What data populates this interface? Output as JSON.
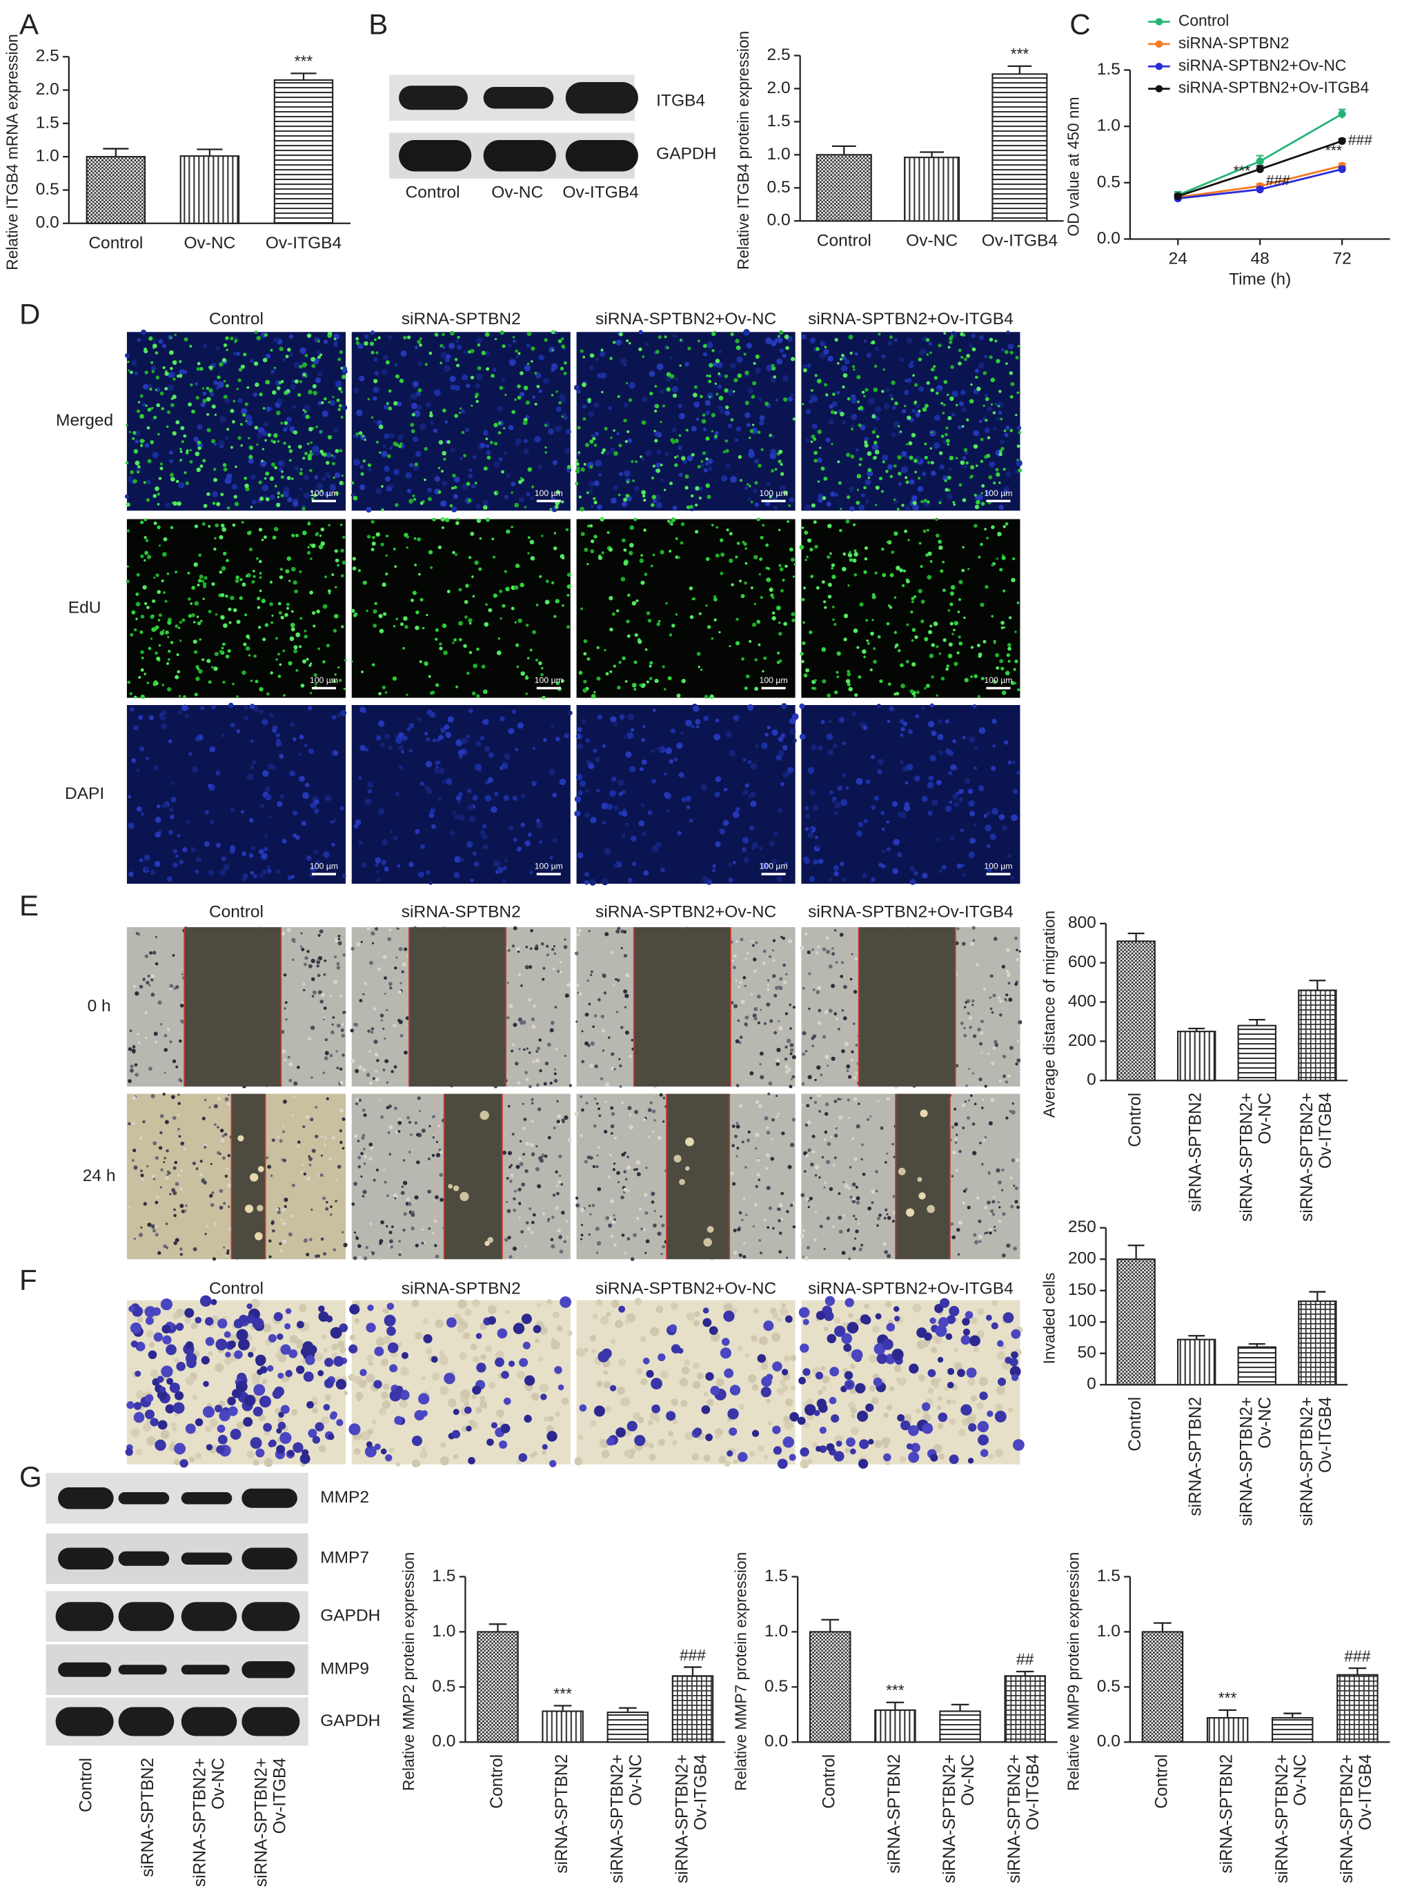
{
  "chart_data": [
    {
      "type": "bar",
      "ylabel": "Relative ITGB4 mRNA expression",
      "categories": [
        "Control",
        "Ov-NC",
        "Ov-ITGB4"
      ],
      "values": [
        1.0,
        1.01,
        2.15
      ],
      "errors": [
        0.12,
        0.1,
        0.1
      ],
      "annotations": [
        null,
        null,
        "***"
      ],
      "patterns": [
        "checker",
        "vertical",
        "horizontal"
      ],
      "ylim": [
        0,
        2.5
      ],
      "yticks": [
        {
          "value": 0,
          "label": "0.0"
        },
        {
          "value": 0.5,
          "label": "0.5"
        },
        {
          "value": 1,
          "label": "1.0"
        },
        {
          "value": 1.5,
          "label": "1.5"
        },
        {
          "value": 2,
          "label": "2.0"
        },
        {
          "value": 2.5,
          "label": "2.5"
        }
      ]
    },
    {
      "type": "bar",
      "ylabel": "Relative ITGB4 protein expression",
      "categories": [
        "Control",
        "Ov-NC",
        "Ov-ITGB4"
      ],
      "values": [
        1.0,
        0.96,
        2.22
      ],
      "errors": [
        0.13,
        0.08,
        0.12
      ],
      "annotations": [
        null,
        null,
        "***"
      ],
      "patterns": [
        "checker",
        "vertical",
        "horizontal"
      ],
      "ylim": [
        0,
        2.5
      ],
      "yticks": [
        {
          "value": 0,
          "label": "0.0"
        },
        {
          "value": 0.5,
          "label": "0.5"
        },
        {
          "value": 1,
          "label": "1.0"
        },
        {
          "value": 1.5,
          "label": "1.5"
        },
        {
          "value": 2,
          "label": "2.0"
        },
        {
          "value": 2.5,
          "label": "2.5"
        }
      ]
    },
    {
      "type": "line",
      "xlabel": "Time (h)",
      "ylabel": "OD value at 450 nm",
      "x": [
        24,
        48,
        72
      ],
      "xlim": [
        10,
        86
      ],
      "xticks": [
        24,
        48,
        72
      ],
      "ylim": [
        0,
        1.5
      ],
      "yticks": [
        {
          "value": 0,
          "label": "0.0"
        },
        {
          "value": 0.5,
          "label": "0.5"
        },
        {
          "value": 1,
          "label": "1.0"
        },
        {
          "value": 1.5,
          "label": "1.5"
        }
      ],
      "legend": "top",
      "series": [
        {
          "name": "Control",
          "color": "#22b573",
          "values": [
            0.39,
            0.69,
            1.11
          ],
          "errors": [
            0.03,
            0.05,
            0.04
          ]
        },
        {
          "name": "siRNA-SPTBN2",
          "color": "#f47a20",
          "values": [
            0.37,
            0.47,
            0.65
          ],
          "errors": [
            0.02,
            0.02,
            0.02
          ],
          "annotations": [
            null,
            "***",
            "***"
          ]
        },
        {
          "name": "siRNA-SPTBN2+Ov-NC",
          "color": "#2a2ad8",
          "values": [
            0.36,
            0.44,
            0.62
          ],
          "errors": [
            0.02,
            0.02,
            0.02
          ]
        },
        {
          "name": "siRNA-SPTBN2+Ov-ITGB4",
          "color": "#111111",
          "values": [
            0.38,
            0.62,
            0.87
          ],
          "errors": [
            0.02,
            0.03,
            0.02
          ],
          "annotations": [
            null,
            "###",
            "###"
          ]
        }
      ]
    },
    {
      "type": "bar",
      "ylabel": "Average distance of migration",
      "categories": [
        "Control",
        "siRNA-SPTBN2",
        "siRNA-SPTBN2+\nOv-NC",
        "siRNA-SPTBN2+\nOv-ITGB4"
      ],
      "values": [
        710,
        250,
        280,
        460
      ],
      "errors": [
        40,
        15,
        30,
        50
      ],
      "annotations": [
        null,
        null,
        null,
        null
      ],
      "patterns": [
        "checker",
        "vertical",
        "horizontal",
        "grid"
      ],
      "ylim": [
        0,
        800
      ],
      "yticks": [
        0,
        200,
        400,
        600,
        800
      ]
    },
    {
      "type": "bar",
      "ylabel": "Invaded cells",
      "categories": [
        "Control",
        "siRNA-SPTBN2",
        "siRNA-SPTBN2+\nOv-NC",
        "siRNA-SPTBN2+\nOv-ITGB4"
      ],
      "values": [
        200,
        72,
        60,
        133
      ],
      "errors": [
        22,
        6,
        5,
        15
      ],
      "annotations": [
        null,
        null,
        null,
        null
      ],
      "patterns": [
        "checker",
        "vertical",
        "horizontal",
        "grid"
      ],
      "ylim": [
        0,
        250
      ],
      "yticks": [
        0,
        50,
        100,
        150,
        200,
        250
      ]
    },
    {
      "type": "bar",
      "ylabel": "Relative MMP2 protein expression",
      "categories": [
        "Control",
        "siRNA-SPTBN2",
        "siRNA-SPTBN2+\nOv-NC",
        "siRNA-SPTBN2+\nOv-ITGB4"
      ],
      "values": [
        1.0,
        0.28,
        0.27,
        0.6
      ],
      "errors": [
        0.07,
        0.05,
        0.04,
        0.08
      ],
      "annotations": [
        null,
        "***",
        null,
        "###"
      ],
      "patterns": [
        "checker",
        "vertical",
        "horizontal",
        "grid"
      ],
      "ylim": [
        0,
        1.5
      ],
      "yticks": [
        {
          "value": 0,
          "label": "0.0"
        },
        {
          "value": 0.5,
          "label": "0.5"
        },
        {
          "value": 1,
          "label": "1.0"
        },
        {
          "value": 1.5,
          "label": "1.5"
        }
      ]
    },
    {
      "type": "bar",
      "ylabel": "Relative MMP7 protein expression",
      "categories": [
        "Control",
        "siRNA-SPTBN2",
        "siRNA-SPTBN2+\nOv-NC",
        "siRNA-SPTBN2+\nOv-ITGB4"
      ],
      "values": [
        1.0,
        0.29,
        0.28,
        0.6
      ],
      "errors": [
        0.11,
        0.07,
        0.06,
        0.04
      ],
      "annotations": [
        null,
        "***",
        null,
        "##"
      ],
      "patterns": [
        "checker",
        "vertical",
        "horizontal",
        "grid"
      ],
      "ylim": [
        0,
        1.5
      ],
      "yticks": [
        {
          "value": 0,
          "label": "0.0"
        },
        {
          "value": 0.5,
          "label": "0.5"
        },
        {
          "value": 1,
          "label": "1.0"
        },
        {
          "value": 1.5,
          "label": "1.5"
        }
      ]
    },
    {
      "type": "bar",
      "ylabel": "Relative MMP9 protein expression",
      "categories": [
        "Control",
        "siRNA-SPTBN2",
        "siRNA-SPTBN2+\nOv-NC",
        "siRNA-SPTBN2+\nOv-ITGB4"
      ],
      "values": [
        1.0,
        0.22,
        0.22,
        0.61
      ],
      "errors": [
        0.08,
        0.07,
        0.04,
        0.06
      ],
      "annotations": [
        null,
        "***",
        null,
        "###"
      ],
      "patterns": [
        "checker",
        "vertical",
        "horizontal",
        "grid"
      ],
      "ylim": [
        0,
        1.5
      ],
      "yticks": [
        {
          "value": 0,
          "label": "0.0"
        },
        {
          "value": 0.5,
          "label": "0.5"
        },
        {
          "value": 1,
          "label": "1.0"
        },
        {
          "value": 1.5,
          "label": "1.5"
        }
      ]
    }
  ],
  "panel_labels": [
    "A",
    "B",
    "C",
    "D",
    "E",
    "F",
    "G"
  ],
  "blot_b": {
    "rows": [
      "ITGB4",
      "GAPDH"
    ],
    "lanes": [
      "Control",
      "Ov-NC",
      "Ov-ITGB4"
    ]
  },
  "conditions": [
    "Control",
    "siRNA-SPTBN2",
    "siRNA-SPTBN2+Ov-NC",
    "siRNA-SPTBN2+Ov-ITGB4"
  ],
  "edu_rows": [
    "Merged",
    "EdU",
    "DAPI"
  ],
  "scale_bar": "100 µm",
  "wound_rows": [
    "0 h",
    "24 h"
  ],
  "blot_g": {
    "rows": [
      "MMP2",
      "MMP7",
      "GAPDH",
      "MMP9",
      "GAPDH"
    ],
    "lanes": [
      "Control",
      "siRNA-SPTBN2",
      "siRNA-SPTBN2+\nOv-NC",
      "siRNA-SPTBN2+\nOv-ITGB4"
    ]
  }
}
